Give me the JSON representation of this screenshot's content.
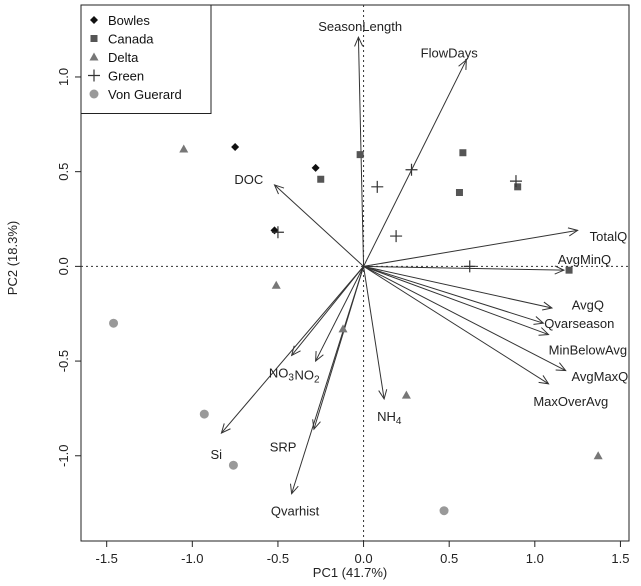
{
  "chart_data": {
    "type": "biplot",
    "xlabel": "PC1 (41.7%)",
    "ylabel": "PC2 (18.3%)",
    "xlim": [
      -1.65,
      1.55
    ],
    "ylim": [
      -1.45,
      1.38
    ],
    "xticks": [
      -1.5,
      -1.0,
      -0.5,
      0.0,
      0.5,
      1.0,
      1.5
    ],
    "xtick_labels": [
      "-1.5",
      "-1.0",
      "-0.5",
      "0.0",
      "0.5",
      "1.0",
      "1.5"
    ],
    "yticks": [
      -1.0,
      -0.5,
      0.0,
      0.5,
      1.0
    ],
    "ytick_labels": [
      "-1.0",
      "-0.5",
      "0.0",
      "0.5",
      "1.0"
    ],
    "reference_lines": {
      "x": 0,
      "y": 0
    },
    "legend": {
      "placement": "top-left",
      "entries": [
        {
          "name": "Bowles",
          "marker": "diamond",
          "color": "#111111"
        },
        {
          "name": "Canada",
          "marker": "square",
          "color": "#555555"
        },
        {
          "name": "Delta",
          "marker": "triangle",
          "color": "#777777"
        },
        {
          "name": "Green",
          "marker": "plus",
          "color": "#333333"
        },
        {
          "name": "Von Guerard",
          "marker": "circle",
          "color": "#999999"
        }
      ]
    },
    "series": [
      {
        "name": "Bowles",
        "marker": "diamond",
        "points": [
          [
            -0.75,
            0.63
          ],
          [
            -0.28,
            0.52
          ],
          [
            -0.52,
            0.19
          ]
        ]
      },
      {
        "name": "Canada",
        "marker": "square",
        "points": [
          [
            -0.02,
            0.59
          ],
          [
            -0.25,
            0.46
          ],
          [
            0.58,
            0.6
          ],
          [
            0.56,
            0.39
          ],
          [
            0.9,
            0.42
          ],
          [
            1.2,
            -0.02
          ]
        ]
      },
      {
        "name": "Delta",
        "marker": "triangle",
        "points": [
          [
            -1.05,
            0.62
          ],
          [
            -0.51,
            -0.1
          ],
          [
            -0.12,
            -0.33
          ],
          [
            0.25,
            -0.68
          ],
          [
            1.37,
            -1.0
          ]
        ]
      },
      {
        "name": "Green",
        "marker": "plus",
        "points": [
          [
            0.08,
            0.42
          ],
          [
            0.28,
            0.51
          ],
          [
            0.19,
            0.16
          ],
          [
            -0.5,
            0.18
          ],
          [
            0.62,
            0.0
          ],
          [
            0.89,
            0.45
          ]
        ]
      },
      {
        "name": "Von Guerard",
        "marker": "circle",
        "points": [
          [
            -1.46,
            -0.3
          ],
          [
            -0.93,
            -0.78
          ],
          [
            -0.76,
            -1.05
          ],
          [
            0.47,
            -1.29
          ]
        ]
      }
    ],
    "arrows": [
      {
        "name": "SeasonLength",
        "x": -0.03,
        "y": 1.21
      },
      {
        "name": "FlowDays",
        "x": 0.6,
        "y": 1.09
      },
      {
        "name": "DOC",
        "x": -0.52,
        "y": 0.43
      },
      {
        "name": "TotalQ",
        "x": 1.25,
        "y": 0.19
      },
      {
        "name": "AvgMinQ",
        "x": 1.17,
        "y": -0.02
      },
      {
        "name": "AvgQ",
        "x": 1.1,
        "y": -0.22
      },
      {
        "name": "Qvarseason",
        "x": 1.05,
        "y": -0.3
      },
      {
        "name": "MinBelowAvg",
        "x": 1.08,
        "y": -0.36
      },
      {
        "name": "AvgMaxQ",
        "x": 1.18,
        "y": -0.55
      },
      {
        "name": "MaxOverAvg",
        "x": 1.08,
        "y": -0.62
      },
      {
        "name": "NO3",
        "x": -0.42,
        "y": -0.47
      },
      {
        "name": "NO2",
        "x": -0.28,
        "y": -0.5
      },
      {
        "name": "NH4",
        "x": 0.12,
        "y": -0.7
      },
      {
        "name": "SRP",
        "x": -0.29,
        "y": -0.86
      },
      {
        "name": "Si",
        "x": -0.83,
        "y": -0.88
      },
      {
        "name": "Qvarhist",
        "x": -0.42,
        "y": -1.2
      }
    ],
    "arrow_labels": [
      {
        "text": "SeasonLength",
        "x": -0.02,
        "y": 1.27,
        "anchor": "middle"
      },
      {
        "text": "FlowDays",
        "x": 0.5,
        "y": 1.13,
        "anchor": "middle"
      },
      {
        "text": "DOC",
        "x": -0.67,
        "y": 0.46,
        "anchor": "middle"
      },
      {
        "text": "TotalQ",
        "x": 1.43,
        "y": 0.16,
        "anchor": "middle"
      },
      {
        "text": "AvgMinQ",
        "x": 1.29,
        "y": 0.04,
        "anchor": "middle"
      },
      {
        "text": "AvgQ",
        "x": 1.31,
        "y": -0.2,
        "anchor": "middle"
      },
      {
        "text": "Qvarseason",
        "x": 1.26,
        "y": -0.3,
        "anchor": "middle"
      },
      {
        "text": "MinBelowAvg",
        "x": 1.31,
        "y": -0.44,
        "anchor": "middle"
      },
      {
        "text": "AvgMaxQ",
        "x": 1.38,
        "y": -0.58,
        "anchor": "middle"
      },
      {
        "text": "MaxOverAvg",
        "x": 1.21,
        "y": -0.71,
        "anchor": "middle"
      },
      {
        "text": "NO3",
        "x": -0.48,
        "y": -0.56,
        "anchor": "middle"
      },
      {
        "text": "NO2",
        "x": -0.33,
        "y": -0.57,
        "anchor": "middle"
      },
      {
        "text": "NH4",
        "x": 0.15,
        "y": -0.79,
        "anchor": "middle"
      },
      {
        "text": "SRP",
        "x": -0.47,
        "y": -0.95,
        "anchor": "middle"
      },
      {
        "text": "Si",
        "x": -0.86,
        "y": -0.99,
        "anchor": "middle"
      },
      {
        "text": "Qvarhist",
        "x": -0.4,
        "y": -1.29,
        "anchor": "middle"
      }
    ],
    "subscript_labels": {
      "NO3": [
        "NO",
        "3"
      ],
      "NO2": [
        "NO",
        "2"
      ],
      "NH4": [
        "NH",
        "4"
      ]
    },
    "grid": false
  }
}
